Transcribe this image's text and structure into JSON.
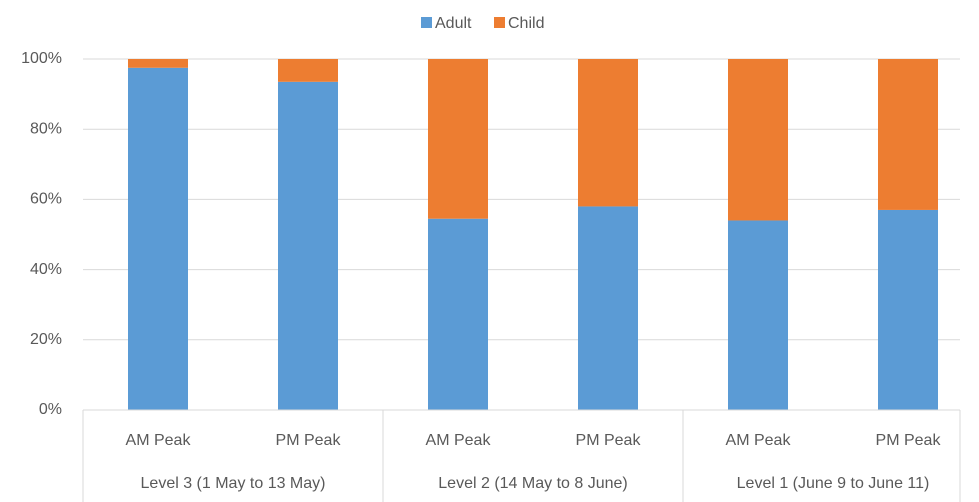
{
  "chart_data": {
    "type": "stacked_bar",
    "categories": [
      "AM Peak",
      "PM Peak",
      "AM Peak",
      "PM Peak",
      "AM Peak",
      "PM Peak"
    ],
    "groups": [
      "Level 3 (1 May to 13 May)",
      "Level 2 (14 May to 8 June)",
      "Level 1 (June 9 to June 11)"
    ],
    "series": [
      {
        "name": "Adult",
        "color": "#5b9bd5",
        "values": [
          97.5,
          93.5,
          54.5,
          58,
          54,
          57
        ]
      },
      {
        "name": "Child",
        "color": "#ed7d31",
        "values": [
          2.5,
          6.5,
          45.5,
          42,
          46,
          43
        ]
      }
    ],
    "ylim": [
      0,
      100
    ],
    "yticks": [
      {
        "value": 0,
        "label": "0%"
      },
      {
        "value": 20,
        "label": "20%"
      },
      {
        "value": 40,
        "label": "40%"
      },
      {
        "value": 60,
        "label": "60%"
      },
      {
        "value": 80,
        "label": "80%"
      },
      {
        "value": 100,
        "label": "100%"
      }
    ],
    "grid": true,
    "legend": "top"
  }
}
